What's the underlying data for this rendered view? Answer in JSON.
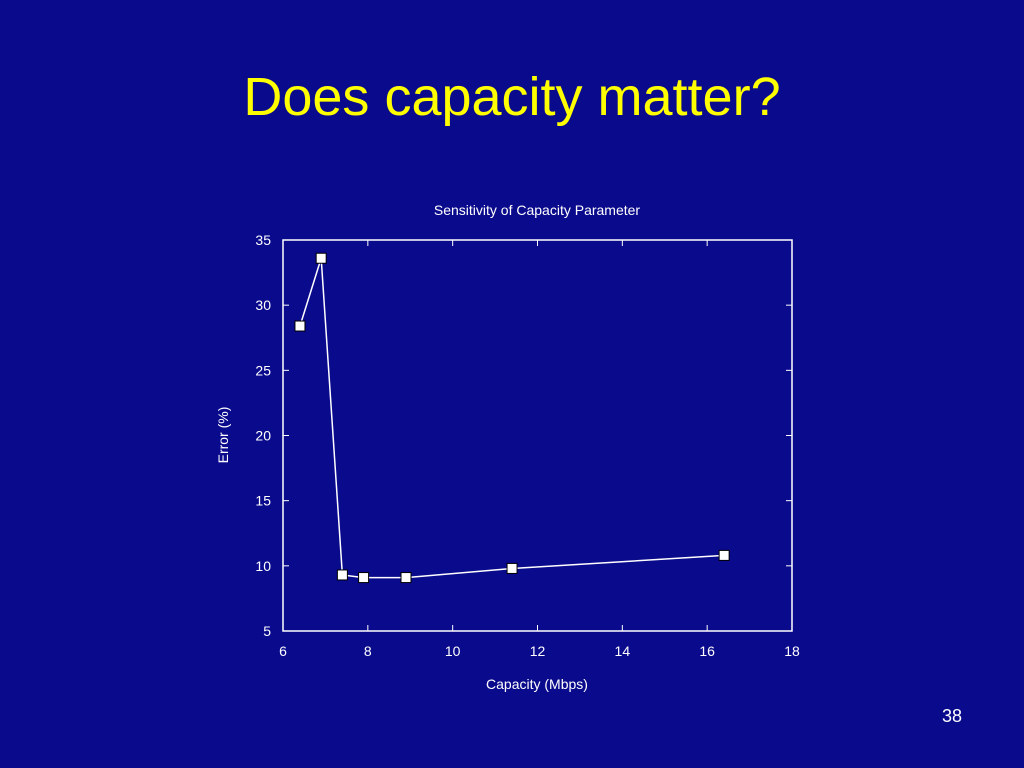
{
  "slide": {
    "title": "Does capacity matter?",
    "number": "38",
    "background_color": "#0a0a8c",
    "title_color": "#ffff00"
  },
  "chart_data": {
    "type": "line",
    "title": "Sensitivity of Capacity Parameter",
    "xlabel": "Capacity (Mbps)",
    "ylabel": "Error (%)",
    "xlim": [
      6,
      18
    ],
    "ylim": [
      5,
      35
    ],
    "xticks": [
      6,
      8,
      10,
      12,
      14,
      16,
      18
    ],
    "yticks": [
      5,
      10,
      15,
      20,
      25,
      30,
      35
    ],
    "grid": false,
    "series": [
      {
        "x": [
          6.4,
          6.9,
          7.4,
          7.9,
          8.9,
          11.4,
          16.4
        ],
        "y": [
          28.4,
          33.6,
          9.3,
          9.1,
          9.1,
          9.8,
          10.8
        ]
      }
    ],
    "line_color": "#ffffff",
    "marker": "square"
  }
}
